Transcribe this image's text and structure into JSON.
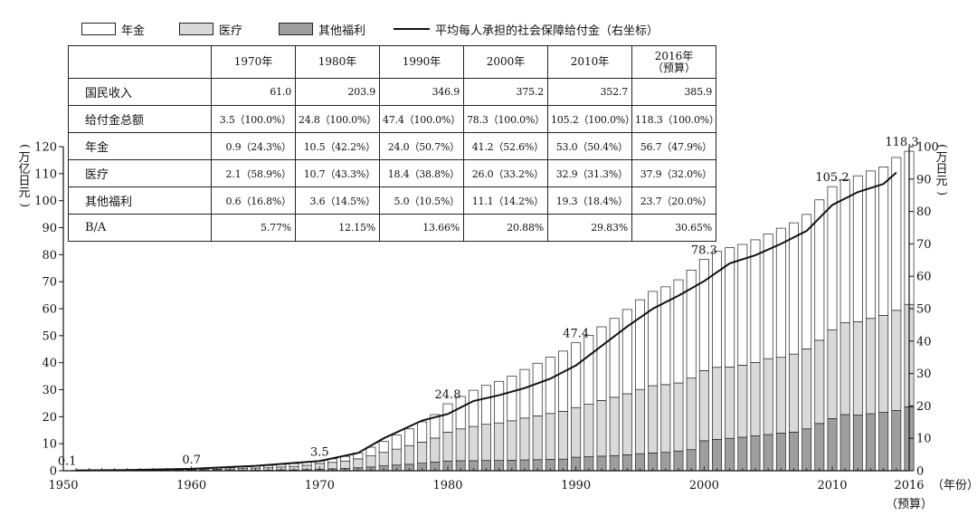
{
  "legend": {
    "pension": "年金",
    "medical": "医疗",
    "welfare": "其他福利",
    "line": "平均每人承担的社会保障给付金（右坐标）"
  },
  "axes": {
    "left_unit": "万亿日元",
    "right_unit": "万日元",
    "x_unit": "（年份）",
    "x_last_note": "（预算）"
  },
  "table": {
    "columns": [
      "1970年",
      "1980年",
      "1990年",
      "2000年",
      "2010年",
      "2016年",
      "（预算）"
    ],
    "rows": [
      {
        "label": "国民收入",
        "cells": [
          "61.0",
          "203.9",
          "346.9",
          "375.2",
          "352.7",
          "385.9"
        ]
      },
      {
        "label": "给付金总额",
        "cells": [
          "3.5（100.0%）",
          "24.8（100.0%）",
          "47.4（100.0%）",
          "78.3（100.0%）",
          "105.2（100.0%）",
          "118.3（100.0%）"
        ]
      },
      {
        "label": "年金",
        "cells": [
          "0.9（24.3%）",
          "10.5（42.2%）",
          "24.0（50.7%）",
          "41.2（52.6%）",
          "53.0（50.4%）",
          "56.7（47.9%）"
        ]
      },
      {
        "label": "医疗",
        "cells": [
          "2.1（58.9%）",
          "10.7（43.3%）",
          "18.4（38.8%）",
          "26.0（33.2%）",
          "32.9（31.3%）",
          "37.9（32.0%）"
        ]
      },
      {
        "label": "其他福利",
        "cells": [
          "0.6（16.8%）",
          "3.6（14.5%）",
          "5.0（10.5%）",
          "11.1（14.2%）",
          "19.3（18.4%）",
          "23.7（20.0%）"
        ]
      },
      {
        "label": "B/A",
        "cells": [
          "5.77%",
          "12.15%",
          "13.66%",
          "20.88%",
          "29.83%",
          "30.65%"
        ]
      }
    ]
  },
  "chart_data": {
    "type": "bar",
    "subtype": "stacked bar with line (dual axis)",
    "title": "",
    "xlabel": "（年份）",
    "ylabel": "万亿日元",
    "y2label": "万日元",
    "ylim": [
      0,
      120
    ],
    "y2lim": [
      0,
      100
    ],
    "yticks": [
      0,
      10,
      20,
      30,
      40,
      50,
      60,
      70,
      80,
      90,
      100,
      110,
      120
    ],
    "y2ticks": [
      0,
      10,
      20,
      30,
      40,
      50,
      60,
      70,
      80,
      90,
      100
    ],
    "xticks": [
      1950,
      1960,
      1970,
      1980,
      1990,
      2000,
      2010,
      2016
    ],
    "x": [
      1951,
      1952,
      1953,
      1954,
      1955,
      1956,
      1957,
      1958,
      1959,
      1960,
      1961,
      1962,
      1963,
      1964,
      1965,
      1966,
      1967,
      1968,
      1969,
      1970,
      1971,
      1972,
      1973,
      1974,
      1975,
      1976,
      1977,
      1978,
      1979,
      1980,
      1981,
      1982,
      1983,
      1984,
      1985,
      1986,
      1987,
      1988,
      1989,
      1990,
      1991,
      1992,
      1993,
      1994,
      1995,
      1996,
      1997,
      1998,
      1999,
      2000,
      2001,
      2002,
      2003,
      2004,
      2005,
      2006,
      2007,
      2008,
      2009,
      2010,
      2011,
      2012,
      2013,
      2014,
      2015,
      2016
    ],
    "series": [
      {
        "name": "其他福利",
        "values": [
          0.05,
          0.05,
          0.05,
          0.05,
          0.05,
          0.05,
          0.05,
          0.05,
          0.1,
          0.1,
          0.1,
          0.15,
          0.15,
          0.2,
          0.2,
          0.2,
          0.3,
          0.3,
          0.4,
          0.6,
          0.7,
          0.9,
          1.1,
          1.4,
          1.8,
          2.1,
          2.4,
          2.8,
          3.2,
          3.6,
          3.7,
          3.7,
          3.8,
          3.8,
          3.9,
          4.0,
          4.1,
          4.2,
          4.3,
          5.0,
          5.2,
          5.4,
          5.6,
          5.9,
          6.3,
          6.6,
          6.8,
          7.3,
          7.8,
          11.1,
          11.6,
          12.0,
          12.4,
          12.9,
          13.4,
          13.9,
          14.3,
          15.5,
          17.5,
          19.3,
          20.8,
          20.6,
          21.1,
          21.6,
          22.3,
          23.7
        ]
      },
      {
        "name": "医疗",
        "values": [
          0.04,
          0.05,
          0.06,
          0.07,
          0.08,
          0.09,
          0.1,
          0.12,
          0.15,
          0.25,
          0.3,
          0.4,
          0.5,
          0.6,
          0.8,
          0.9,
          1.1,
          1.3,
          1.6,
          2.1,
          2.4,
          2.7,
          3.3,
          4.1,
          5.0,
          5.9,
          6.9,
          7.8,
          8.9,
          10.7,
          11.8,
          12.7,
          13.4,
          13.9,
          14.6,
          15.5,
          16.2,
          17.0,
          17.7,
          18.4,
          19.4,
          20.6,
          21.6,
          22.6,
          23.8,
          24.9,
          25.1,
          25.2,
          26.5,
          26.0,
          26.7,
          26.4,
          26.7,
          27.2,
          28.1,
          28.1,
          28.9,
          29.6,
          30.8,
          32.9,
          34.0,
          34.6,
          35.3,
          35.9,
          37.1,
          37.9
        ]
      },
      {
        "name": "年金",
        "values": [
          0.01,
          0.02,
          0.02,
          0.03,
          0.03,
          0.04,
          0.04,
          0.05,
          0.1,
          0.35,
          0.4,
          0.45,
          0.5,
          0.6,
          0.7,
          0.8,
          0.9,
          1.0,
          1.1,
          0.9,
          1.3,
          1.7,
          2.2,
          3.2,
          4.1,
          5.2,
          6.2,
          7.5,
          8.7,
          10.5,
          12.0,
          13.4,
          14.4,
          15.4,
          16.5,
          18.0,
          19.5,
          20.9,
          22.3,
          24.0,
          25.5,
          27.3,
          29.2,
          31.2,
          33.2,
          34.9,
          36.2,
          38.2,
          40.0,
          41.2,
          42.9,
          44.2,
          44.7,
          45.4,
          46.2,
          47.8,
          48.6,
          49.8,
          52.0,
          53.0,
          53.0,
          54.0,
          54.6,
          55.0,
          56.6,
          56.7
        ]
      },
      {
        "name": "平均每人承担的社会保障给付金",
        "axis": "right",
        "x": [
          1951,
          1955,
          1960,
          1965,
          1970,
          1973,
          1975,
          1978,
          1980,
          1982,
          1984,
          1986,
          1988,
          1990,
          1992,
          1994,
          1996,
          1998,
          2000,
          2002,
          2004,
          2006,
          2008,
          2010,
          2012,
          2014,
          2015
        ],
        "values": [
          0.1,
          0.2,
          0.6,
          1.5,
          3.0,
          5.5,
          10.0,
          15.5,
          17.5,
          21.5,
          23.3,
          25.5,
          28.4,
          32.5,
          38.5,
          44.5,
          50.0,
          54.0,
          58.5,
          64.0,
          66.5,
          70.0,
          74.0,
          82.0,
          86.0,
          88.5,
          92.0
        ]
      }
    ],
    "data_labels": [
      {
        "year": 1951,
        "label": "0.1"
      },
      {
        "year": 1960,
        "label": "0.7"
      },
      {
        "year": 1970,
        "label": "3.5"
      },
      {
        "year": 1980,
        "label": "24.8"
      },
      {
        "year": 1990,
        "label": "47.4"
      },
      {
        "year": 2000,
        "label": "78.3"
      },
      {
        "year": 2010,
        "label": "105.2"
      },
      {
        "year": 2016,
        "label": "118.3"
      }
    ],
    "colors": {
      "年金": "#ffffff",
      "医疗": "#d9d9d9",
      "其他福利": "#9e9e9e",
      "line": "#111111"
    }
  }
}
